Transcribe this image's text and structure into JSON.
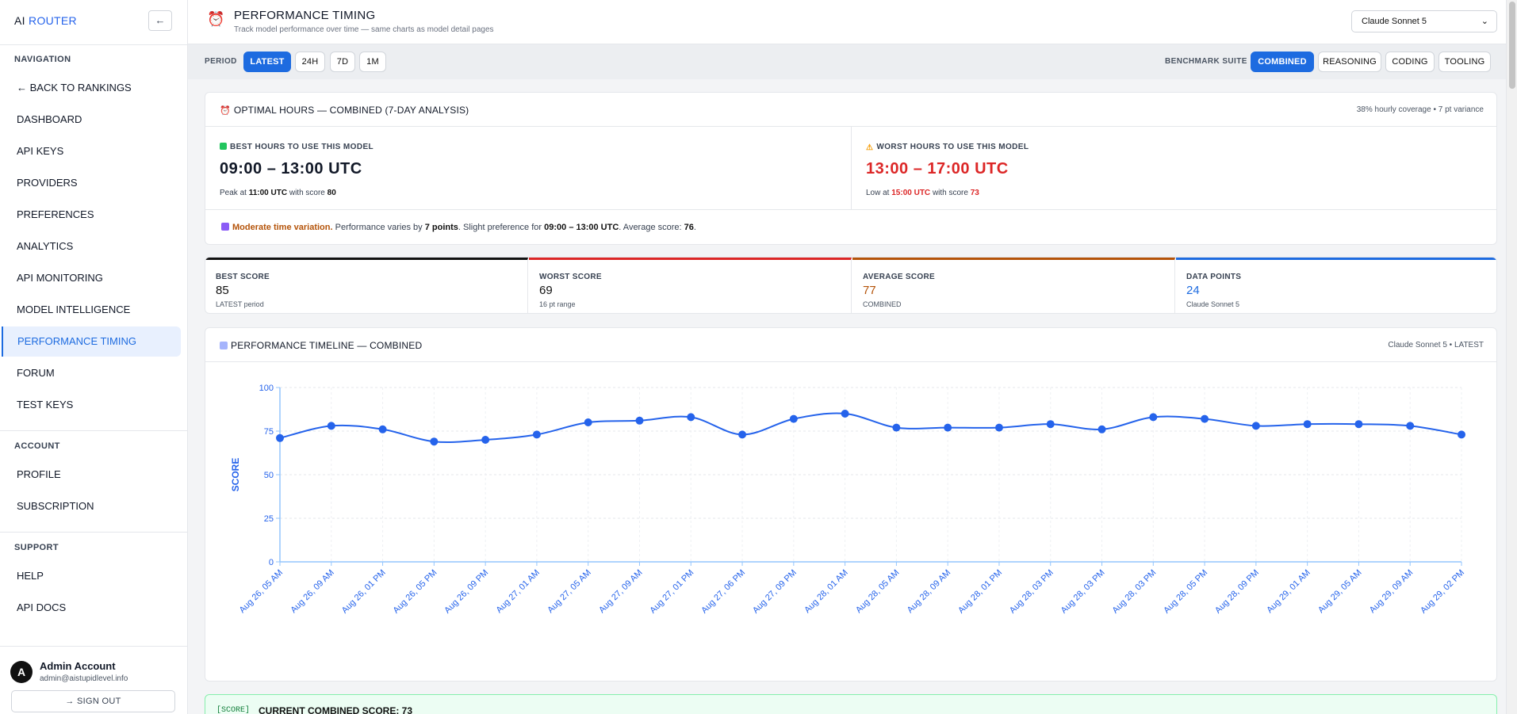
{
  "sidebar": {
    "brand_prefix": "AI",
    "brand_accent": "ROUTER",
    "collapse_label": "←",
    "nav_heading": "NAVIGATION",
    "nav_items": [
      {
        "label": "← BACK TO RANKINGS"
      },
      {
        "label": "DASHBOARD"
      },
      {
        "label": "API KEYS"
      },
      {
        "label": "PROVIDERS"
      },
      {
        "label": "PREFERENCES"
      },
      {
        "label": "ANALYTICS"
      },
      {
        "label": "API MONITORING"
      },
      {
        "label": "MODEL INTELLIGENCE"
      },
      {
        "label": "PERFORMANCE TIMING",
        "active": true
      },
      {
        "label": "FORUM"
      },
      {
        "label": "TEST KEYS"
      }
    ],
    "account_heading": "ACCOUNT",
    "account_items": [
      {
        "label": "PROFILE"
      },
      {
        "label": "SUBSCRIPTION"
      }
    ],
    "support_heading": "SUPPORT",
    "support_items": [
      {
        "label": "HELP"
      },
      {
        "label": "API DOCS"
      }
    ],
    "user": {
      "initial": "A",
      "name": "Admin Account",
      "email": "admin@aistupidlevel.info",
      "signout": "→ SIGN OUT"
    }
  },
  "header": {
    "icon": "alarm-clock-icon",
    "title": "PERFORMANCE TIMING",
    "subtitle": "Track model performance over time — same charts as model detail pages",
    "model_selected": "Claude Sonnet 5"
  },
  "toolbar": {
    "period_label": "PERIOD",
    "periods": [
      "LATEST",
      "24H",
      "7D",
      "1M"
    ],
    "period_active": "LATEST",
    "suite_label": "BENCHMARK SUITE",
    "suites": [
      "COMBINED",
      "REASONING",
      "CODING",
      "TOOLING"
    ],
    "suite_active": "COMBINED"
  },
  "optimal": {
    "title": "OPTIMAL HOURS — COMBINED (7-DAY ANALYSIS)",
    "meta": "38% hourly coverage • 7 pt variance",
    "best": {
      "label": "BEST HOURS TO USE THIS MODEL",
      "range": "09:00 – 13:00 UTC",
      "note_prefix": "Peak at",
      "note_time": "11:00 UTC",
      "note_mid": "with score",
      "note_score": "80"
    },
    "worst": {
      "label": "WORST HOURS TO USE THIS MODEL",
      "range": "13:00 – 17:00 UTC",
      "note_prefix": "Low at",
      "note_time": "15:00 UTC",
      "note_mid": "with score",
      "note_score": "73"
    },
    "variation": {
      "headline": "Moderate time variation.",
      "t1": "Performance varies by",
      "points": "7 points",
      "t2": ". Slight preference for",
      "window": "09:00 – 13:00 UTC",
      "t3": ". Average score:",
      "avg": "76",
      "t4": "."
    }
  },
  "stats": [
    {
      "label": "BEST SCORE",
      "value": "85",
      "sub": "LATEST period",
      "color": "#111111",
      "value_color": "#111111"
    },
    {
      "label": "WORST SCORE",
      "value": "69",
      "sub": "16 pt range",
      "color": "#dc2626",
      "value_color": "#111111"
    },
    {
      "label": "AVERAGE SCORE",
      "value": "77",
      "sub": "COMBINED",
      "color": "#b45309",
      "value_color": "#b45309"
    },
    {
      "label": "DATA POINTS",
      "value": "24",
      "sub": "Claude Sonnet 5",
      "color": "#1d6be0",
      "value_color": "#1d6be0"
    }
  ],
  "timeline": {
    "title": "PERFORMANCE TIMELINE — COMBINED",
    "meta": "Claude Sonnet 5 • LATEST"
  },
  "chart_data": {
    "type": "line",
    "ylabel": "SCORE",
    "ylim": [
      0,
      100
    ],
    "yticks": [
      0,
      25,
      50,
      75,
      100
    ],
    "grid": true,
    "x": [
      "Aug 26, 05 AM",
      "Aug 26, 09 AM",
      "Aug 26, 01 PM",
      "Aug 26, 05 PM",
      "Aug 26, 09 PM",
      "Aug 27, 01 AM",
      "Aug 27, 05 AM",
      "Aug 27, 09 AM",
      "Aug 27, 01 PM",
      "Aug 27, 06 PM",
      "Aug 27, 09 PM",
      "Aug 28, 01 AM",
      "Aug 28, 05 AM",
      "Aug 28, 09 AM",
      "Aug 28, 01 PM",
      "Aug 28, 03 PM",
      "Aug 28, 03 PM",
      "Aug 28, 03 PM",
      "Aug 28, 05 PM",
      "Aug 28, 09 PM",
      "Aug 29, 01 AM",
      "Aug 29, 05 AM",
      "Aug 29, 09 AM",
      "Aug 29, 02 PM"
    ],
    "series": [
      {
        "values": [
          71,
          78,
          76,
          69,
          70,
          73,
          80,
          81,
          83,
          73,
          82,
          85,
          77,
          77,
          77,
          79,
          76,
          83,
          82,
          78,
          79,
          79,
          78,
          73
        ],
        "color": "#2563eb"
      }
    ]
  },
  "score_bar": {
    "tag": "[SCORE]",
    "text": "CURRENT COMBINED SCORE: 73"
  }
}
